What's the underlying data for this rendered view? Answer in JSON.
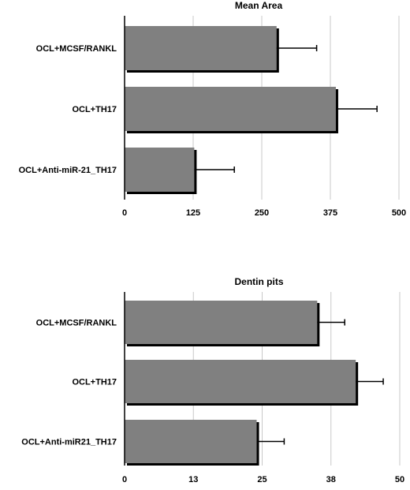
{
  "chart_data": [
    {
      "type": "bar",
      "orientation": "horizontal",
      "title": "Mean Area",
      "categories": [
        "OCL+MCSF/RANKL",
        "OCL+TH17",
        "OCL+Anti-miR-21_TH17"
      ],
      "values": [
        277,
        385,
        127
      ],
      "errors": [
        73,
        75,
        73
      ],
      "xlim": [
        0,
        500
      ],
      "xticks": [
        0,
        125,
        250,
        375,
        500
      ],
      "xtick_labels": [
        "0",
        "125",
        "250",
        "375",
        "500"
      ],
      "grid": true,
      "bar_color": "#808080"
    },
    {
      "type": "bar",
      "orientation": "horizontal",
      "title": "Dentin pits",
      "categories": [
        "OCL+MCSF/RANKL",
        "OCL+TH17",
        "OCL+Anti-miR21_TH17"
      ],
      "values": [
        35,
        42,
        24
      ],
      "errors": [
        5,
        5,
        5
      ],
      "xlim": [
        0,
        50
      ],
      "xticks": [
        0,
        12.5,
        25,
        37.5,
        50
      ],
      "xtick_labels": [
        "0",
        "13",
        "25",
        "38",
        "50"
      ],
      "grid": true,
      "bar_color": "#808080"
    }
  ]
}
